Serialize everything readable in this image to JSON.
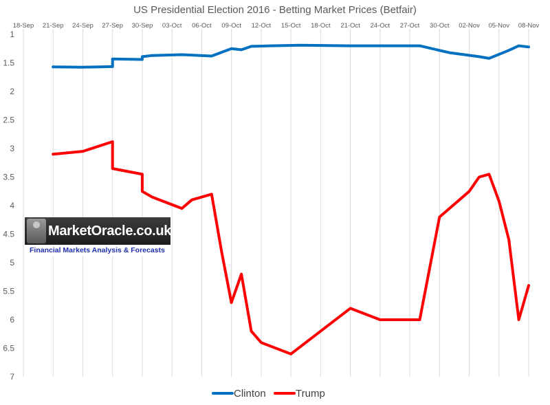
{
  "chart_data": {
    "type": "line",
    "title": "US Presidential Election 2016 - Betting Market Prices (Betfair)",
    "xlabel": "",
    "ylabel": "",
    "x_ticks": [
      "18-Sep",
      "21-Sep",
      "24-Sep",
      "27-Sep",
      "30-Sep",
      "03-Oct",
      "06-Oct",
      "09-Oct",
      "12-Oct",
      "15-Oct",
      "18-Oct",
      "21-Oct",
      "24-Oct",
      "27-Oct",
      "30-Oct",
      "02-Nov",
      "05-Nov",
      "08-Nov"
    ],
    "x_range": [
      "2016-09-18",
      "2016-11-08"
    ],
    "y_ticks": [
      "1",
      "1.5",
      "2",
      "2.5",
      "3",
      "3.5",
      "4",
      "4.5",
      "5",
      "5.5",
      "6",
      "6.5",
      "7"
    ],
    "ylim": [
      1,
      7
    ],
    "y_reversed": true,
    "grid": "vertical",
    "legend_position": "bottom",
    "series": [
      {
        "name": "Clinton",
        "color": "#0070c0",
        "points": [
          [
            "2016-09-21",
            1.57
          ],
          [
            "2016-09-24",
            1.575
          ],
          [
            "2016-09-27",
            1.565
          ],
          [
            "2016-09-27",
            1.43
          ],
          [
            "2016-09-30",
            1.44
          ],
          [
            "2016-09-30",
            1.39
          ],
          [
            "2016-10-01",
            1.37
          ],
          [
            "2016-10-04",
            1.355
          ],
          [
            "2016-10-07",
            1.38
          ],
          [
            "2016-10-09",
            1.25
          ],
          [
            "2016-10-10",
            1.27
          ],
          [
            "2016-10-11",
            1.21
          ],
          [
            "2016-10-13",
            1.2
          ],
          [
            "2016-10-16",
            1.19
          ],
          [
            "2016-10-21",
            1.2
          ],
          [
            "2016-10-28",
            1.2
          ],
          [
            "2016-10-31",
            1.32
          ],
          [
            "2016-11-03",
            1.39
          ],
          [
            "2016-11-04",
            1.42
          ],
          [
            "2016-11-06",
            1.28
          ],
          [
            "2016-11-07",
            1.2
          ],
          [
            "2016-11-08",
            1.22
          ]
        ]
      },
      {
        "name": "Trump",
        "color": "#ff0000",
        "points": [
          [
            "2016-09-21",
            3.1
          ],
          [
            "2016-09-24",
            3.05
          ],
          [
            "2016-09-27",
            2.88
          ],
          [
            "2016-09-27",
            3.35
          ],
          [
            "2016-09-30",
            3.45
          ],
          [
            "2016-09-30",
            3.75
          ],
          [
            "2016-10-01",
            3.85
          ],
          [
            "2016-10-04",
            4.05
          ],
          [
            "2016-10-05",
            3.9
          ],
          [
            "2016-10-07",
            3.8
          ],
          [
            "2016-10-08",
            4.8
          ],
          [
            "2016-10-09",
            5.7
          ],
          [
            "2016-10-10",
            5.2
          ],
          [
            "2016-10-11",
            6.2
          ],
          [
            "2016-10-12",
            6.4
          ],
          [
            "2016-10-15",
            6.6
          ],
          [
            "2016-10-21",
            5.8
          ],
          [
            "2016-10-24",
            6.0
          ],
          [
            "2016-10-28",
            6.0
          ],
          [
            "2016-10-30",
            4.2
          ],
          [
            "2016-11-02",
            3.75
          ],
          [
            "2016-11-03",
            3.5
          ],
          [
            "2016-11-04",
            3.45
          ],
          [
            "2016-11-05",
            3.92
          ],
          [
            "2016-11-06",
            4.6
          ],
          [
            "2016-11-07",
            6.0
          ],
          [
            "2016-11-08",
            5.4
          ]
        ]
      }
    ]
  },
  "watermark": {
    "name": "MarketOracle.co.uk",
    "tagline": "Financial Markets Analysis & Forecasts"
  }
}
